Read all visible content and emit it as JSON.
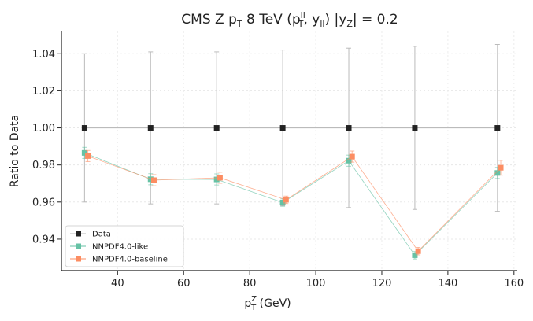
{
  "chart_data": {
    "type": "line",
    "title": {
      "main": "CMS Z p",
      "sub_T": "T",
      "rest": " 8 TeV (p",
      "sup_ll": "ll",
      "sub_T2": "T",
      "mid": ", y",
      "sub_ll": "ll",
      "end": ") |y",
      "sub_Z": "Z",
      "tail": "| = 0.2"
    },
    "xlabel": {
      "main": "p",
      "sup": "Z",
      "sub": "T",
      "rest": " (GeV)"
    },
    "ylabel": "Ratio to Data",
    "xlim": [
      23,
      161
    ],
    "ylim": [
      0.923,
      1.052
    ],
    "x_ticks": [
      40,
      60,
      80,
      100,
      120,
      140,
      160
    ],
    "y_ticks": [
      0.94,
      0.96,
      0.98,
      1.0,
      1.02,
      1.04
    ],
    "y_tick_labels": [
      "0.94",
      "0.96",
      "0.98",
      "1.00",
      "1.02",
      "1.04"
    ],
    "legend_position": "lower-left",
    "series": [
      {
        "name": "Data",
        "color": "#222222",
        "line_color": "#bbbbbb",
        "x": [
          30,
          50,
          70,
          90,
          110,
          130,
          155
        ],
        "y": [
          1.0,
          1.0,
          1.0,
          1.0,
          1.0,
          1.0,
          1.0
        ],
        "err": [
          0.04,
          0.041,
          0.041,
          0.042,
          0.043,
          0.044,
          0.045
        ]
      },
      {
        "name": "NNPDF4.0-like",
        "color": "#66c2a5",
        "x": [
          30,
          50,
          70,
          90,
          110,
          130,
          155
        ],
        "y": [
          0.9865,
          0.9723,
          0.9722,
          0.9597,
          0.9823,
          0.9313,
          0.9757
        ],
        "err": [
          0.003,
          0.003,
          0.003,
          0.002,
          0.003,
          0.002,
          0.003
        ]
      },
      {
        "name": "NNPDF4.0-baseline",
        "color": "#fc8d62",
        "x": [
          31,
          51,
          71,
          91,
          111,
          131,
          156
        ],
        "y": [
          0.9848,
          0.9718,
          0.9731,
          0.9612,
          0.9845,
          0.9335,
          0.9785
        ],
        "err": [
          0.003,
          0.003,
          0.003,
          0.002,
          0.003,
          0.002,
          0.004
        ]
      }
    ]
  }
}
